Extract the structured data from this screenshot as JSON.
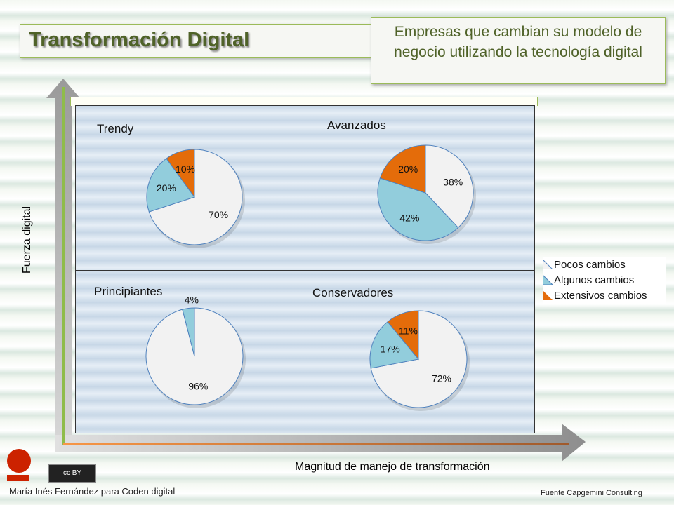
{
  "title": "Transformación Digital",
  "subtitle": "Empresas que cambian su modelo de negocio utilizando la tecnología digital",
  "colors": {
    "pocos": "#f2f2f2",
    "algunos": "#92cddc",
    "extensivos": "#e46c0a",
    "title": "#4f6228"
  },
  "chart_data": {
    "type": "pie",
    "xlabel": "Magnitud de manejo de transformación",
    "ylabel": "Fuerza digital",
    "legend": {
      "placement": "right",
      "entries": [
        "Pocos  cambios",
        "Algunos cambios",
        "Extensivos cambios"
      ]
    },
    "quadrants": [
      {
        "title": "Trendy",
        "values": [
          70,
          20,
          10
        ],
        "labels": [
          "70%",
          "20%",
          "10%"
        ]
      },
      {
        "title": "Avanzados",
        "values": [
          38,
          42,
          20
        ],
        "labels": [
          "38%",
          "42%",
          "20%"
        ]
      },
      {
        "title": "Principiantes",
        "values": [
          96,
          4,
          0
        ],
        "labels": [
          "96%",
          "4%",
          ""
        ]
      },
      {
        "title": "Conservadores",
        "values": [
          72,
          17,
          11
        ],
        "labels": [
          "72%",
          "17%",
          "11%"
        ]
      }
    ]
  },
  "footer": {
    "author": "María Inés Fernández para Coden digital",
    "source": "Fuente  Capgemini Consulting",
    "license": "cc BY"
  }
}
